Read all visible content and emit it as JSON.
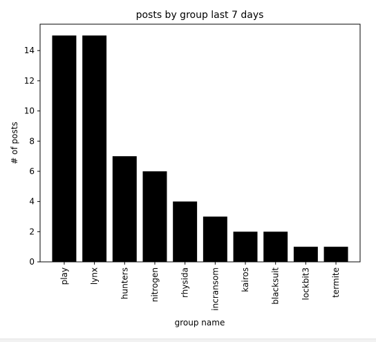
{
  "chart_data": {
    "type": "bar",
    "title": "posts by group last 7 days",
    "xlabel": "group name",
    "ylabel": "# of posts",
    "categories": [
      "play",
      "lynx",
      "hunters",
      "nitrogen",
      "rhysida",
      "incransom",
      "kairos",
      "blacksuit",
      "lockbit3",
      "termite"
    ],
    "values": [
      15,
      15,
      7,
      6,
      4,
      3,
      2,
      2,
      1,
      1
    ],
    "ylim": [
      0,
      15.75
    ],
    "yticks": [
      0,
      2,
      4,
      6,
      8,
      10,
      12,
      14
    ],
    "grid": false,
    "bar_color": "#000000"
  }
}
